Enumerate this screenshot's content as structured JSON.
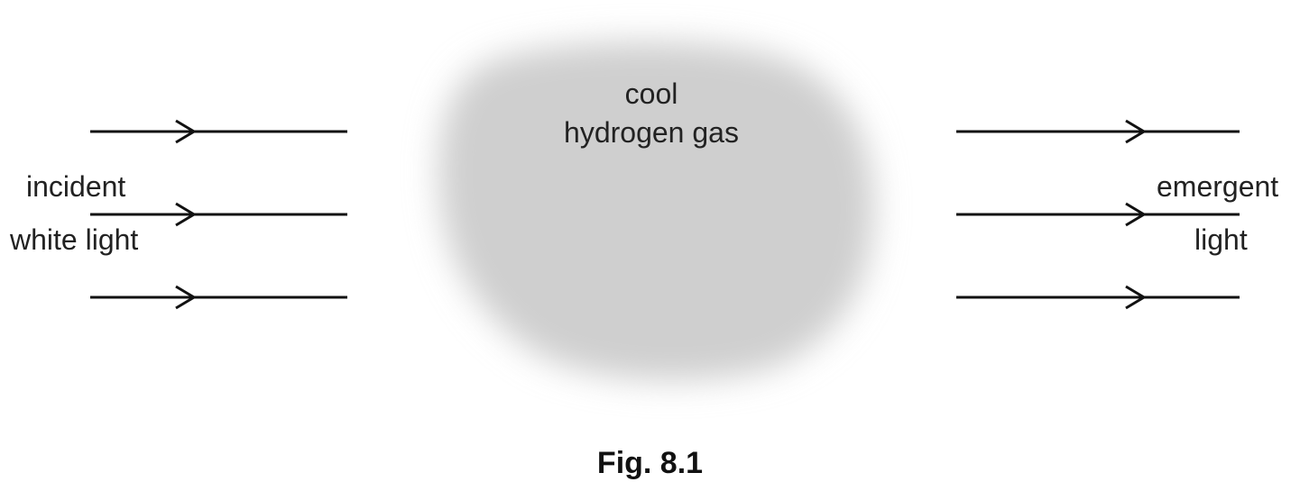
{
  "gas": {
    "line1": "cool",
    "line2": "hydrogen gas",
    "fill_color": "#cfcfcf"
  },
  "incident": {
    "line1": "incident",
    "line2": "white light"
  },
  "emergent": {
    "line1": "emergent",
    "line2": "light"
  },
  "figure": {
    "caption": "Fig. 8.1"
  },
  "colors": {
    "ray": "#111111",
    "text": "#222222"
  }
}
